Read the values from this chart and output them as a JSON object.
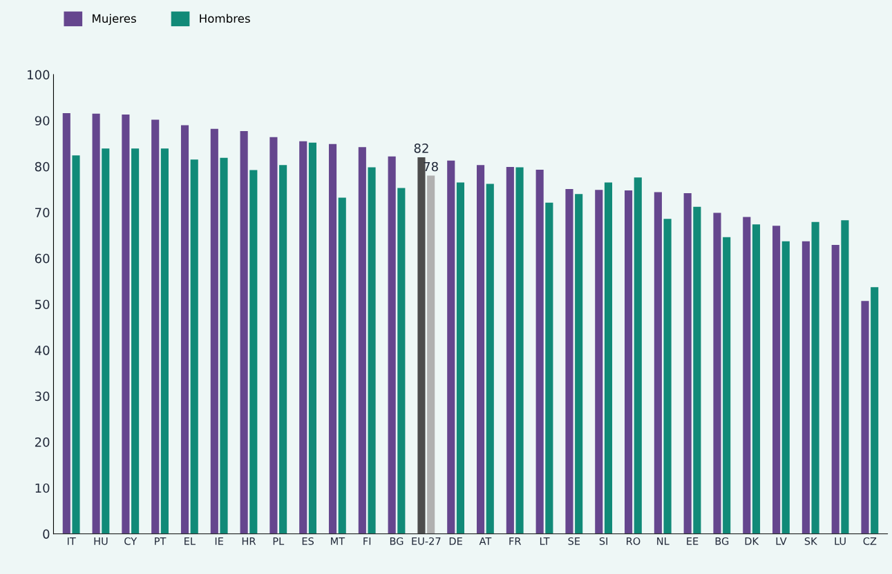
{
  "chart_data": {
    "type": "bar",
    "categories": [
      "IT",
      "HU",
      "CY",
      "PT",
      "EL",
      "IE",
      "HR",
      "PL",
      "ES",
      "MT",
      "FI",
      "BG",
      "EU-27",
      "DE",
      "AT",
      "FR",
      "LT",
      "SE",
      "SI",
      "RO",
      "NL",
      "EE",
      "BG",
      "DK",
      "LV",
      "SK",
      "LU",
      "CZ"
    ],
    "series": [
      {
        "name": "Mujeres",
        "color": "#65468e",
        "colors": [
          "#65468e",
          "#65468e",
          "#65468e",
          "#65468e",
          "#65468e",
          "#65468e",
          "#65468e",
          "#65468e",
          "#65468e",
          "#65468e",
          "#65468e",
          "#65468e",
          "#4d4d4d",
          "#65468e",
          "#65468e",
          "#65468e",
          "#65468e",
          "#65468e",
          "#65468e",
          "#65468e",
          "#65468e",
          "#65468e",
          "#65468e",
          "#65468e",
          "#65468e",
          "#65468e",
          "#65468e",
          "#65468e"
        ],
        "values": [
          91.6,
          91.5,
          91.3,
          90.2,
          89.0,
          88.2,
          87.7,
          86.4,
          85.5,
          84.9,
          84.2,
          82.2,
          82,
          81.3,
          80.3,
          79.9,
          79.3,
          75.1,
          74.9,
          74.8,
          74.4,
          74.2,
          69.9,
          69.0,
          67.1,
          63.7,
          62.9,
          50.7
        ],
        "value_labels": [
          null,
          null,
          null,
          null,
          null,
          null,
          null,
          null,
          null,
          null,
          null,
          null,
          "82",
          null,
          null,
          null,
          null,
          null,
          null,
          null,
          null,
          null,
          null,
          null,
          null,
          null,
          null,
          null
        ]
      },
      {
        "name": "Hombres",
        "color": "#118a78",
        "colors": [
          "#118a78",
          "#118a78",
          "#118a78",
          "#118a78",
          "#118a78",
          "#118a78",
          "#118a78",
          "#118a78",
          "#118a78",
          "#118a78",
          "#118a78",
          "#118a78",
          "#b0b0b0",
          "#118a78",
          "#118a78",
          "#118a78",
          "#118a78",
          "#118a78",
          "#118a78",
          "#118a78",
          "#118a78",
          "#118a78",
          "#118a78",
          "#118a78",
          "#118a78",
          "#118a78",
          "#118a78",
          "#118a78"
        ],
        "values": [
          82.4,
          83.9,
          83.9,
          83.9,
          81.5,
          81.9,
          79.2,
          80.3,
          85.2,
          73.2,
          79.8,
          75.3,
          78,
          76.5,
          76.2,
          79.8,
          72.1,
          74.0,
          76.5,
          77.6,
          68.6,
          71.2,
          64.6,
          67.4,
          63.7,
          67.9,
          68.3,
          53.7
        ],
        "value_labels": [
          null,
          null,
          null,
          null,
          null,
          null,
          null,
          null,
          null,
          null,
          null,
          null,
          "78",
          null,
          null,
          null,
          null,
          null,
          null,
          null,
          null,
          null,
          null,
          null,
          null,
          null,
          null,
          null
        ]
      }
    ],
    "ylim": [
      0,
      100
    ],
    "yticks": [
      0,
      10,
      20,
      30,
      40,
      50,
      60,
      70,
      80,
      90,
      100
    ],
    "grid": false,
    "legend": "top left"
  }
}
